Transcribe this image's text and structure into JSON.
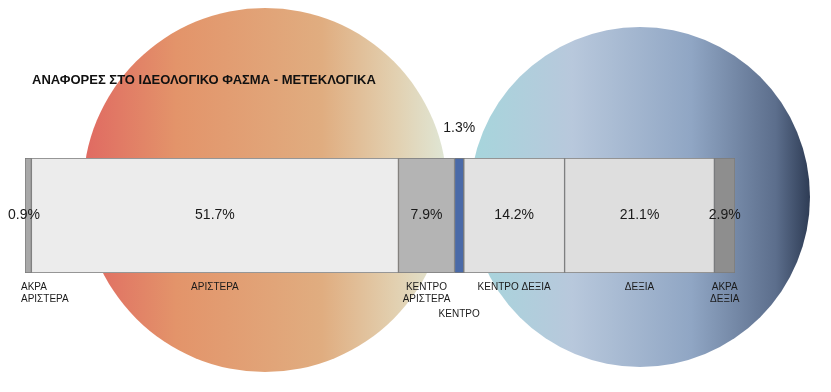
{
  "chart_data": {
    "type": "bar",
    "title": "ΑΝΑΦΟΡΕΣ ΣΤΟ ΙΔΕΟΛΟΓΙΚΟ ΦΑΣΜΑ - ΜΕΤΕΚΛΟΓΙΚΑ",
    "orientation": "horizontal",
    "stacked": true,
    "data_labels": true,
    "tick_labels": false,
    "xlim": [
      0,
      100
    ],
    "series": [
      {
        "name": "ΑΚΡΑ ΑΡΙΣΤΕΡΑ",
        "color": "#a8a8a8",
        "values": [
          0.9
        ],
        "value_labels": [
          "0.9%"
        ]
      },
      {
        "name": "ΑΡΙΣΤΕΡΑ",
        "color": "#ececec",
        "values": [
          51.7
        ],
        "value_labels": [
          "51.7%"
        ]
      },
      {
        "name": "ΚΕΝΤΡΟ ΑΡΙΣΤΕΡΑ",
        "color": "#b4b4b4",
        "values": [
          7.9
        ],
        "value_labels": [
          "7.9%"
        ]
      },
      {
        "name": "ΚΕΝΤΡΟ",
        "color": "#4a6aa8",
        "values": [
          1.3
        ],
        "value_labels": [
          "1.3%"
        ]
      },
      {
        "name": "ΚΕΝΤΡΟ ΔΕΞΙΑ",
        "color": "#e2e2e2",
        "values": [
          14.2
        ],
        "value_labels": [
          "14.2%"
        ]
      },
      {
        "name": "ΔΕΞΙΑ",
        "color": "#dedede",
        "values": [
          21.1
        ],
        "value_labels": [
          "21.1%"
        ]
      },
      {
        "name": "ΑΚΡΑ ΔΕΞΙΑ",
        "color": "#8e8e8e",
        "values": [
          2.9
        ],
        "value_labels": [
          "2.9%"
        ]
      }
    ]
  }
}
